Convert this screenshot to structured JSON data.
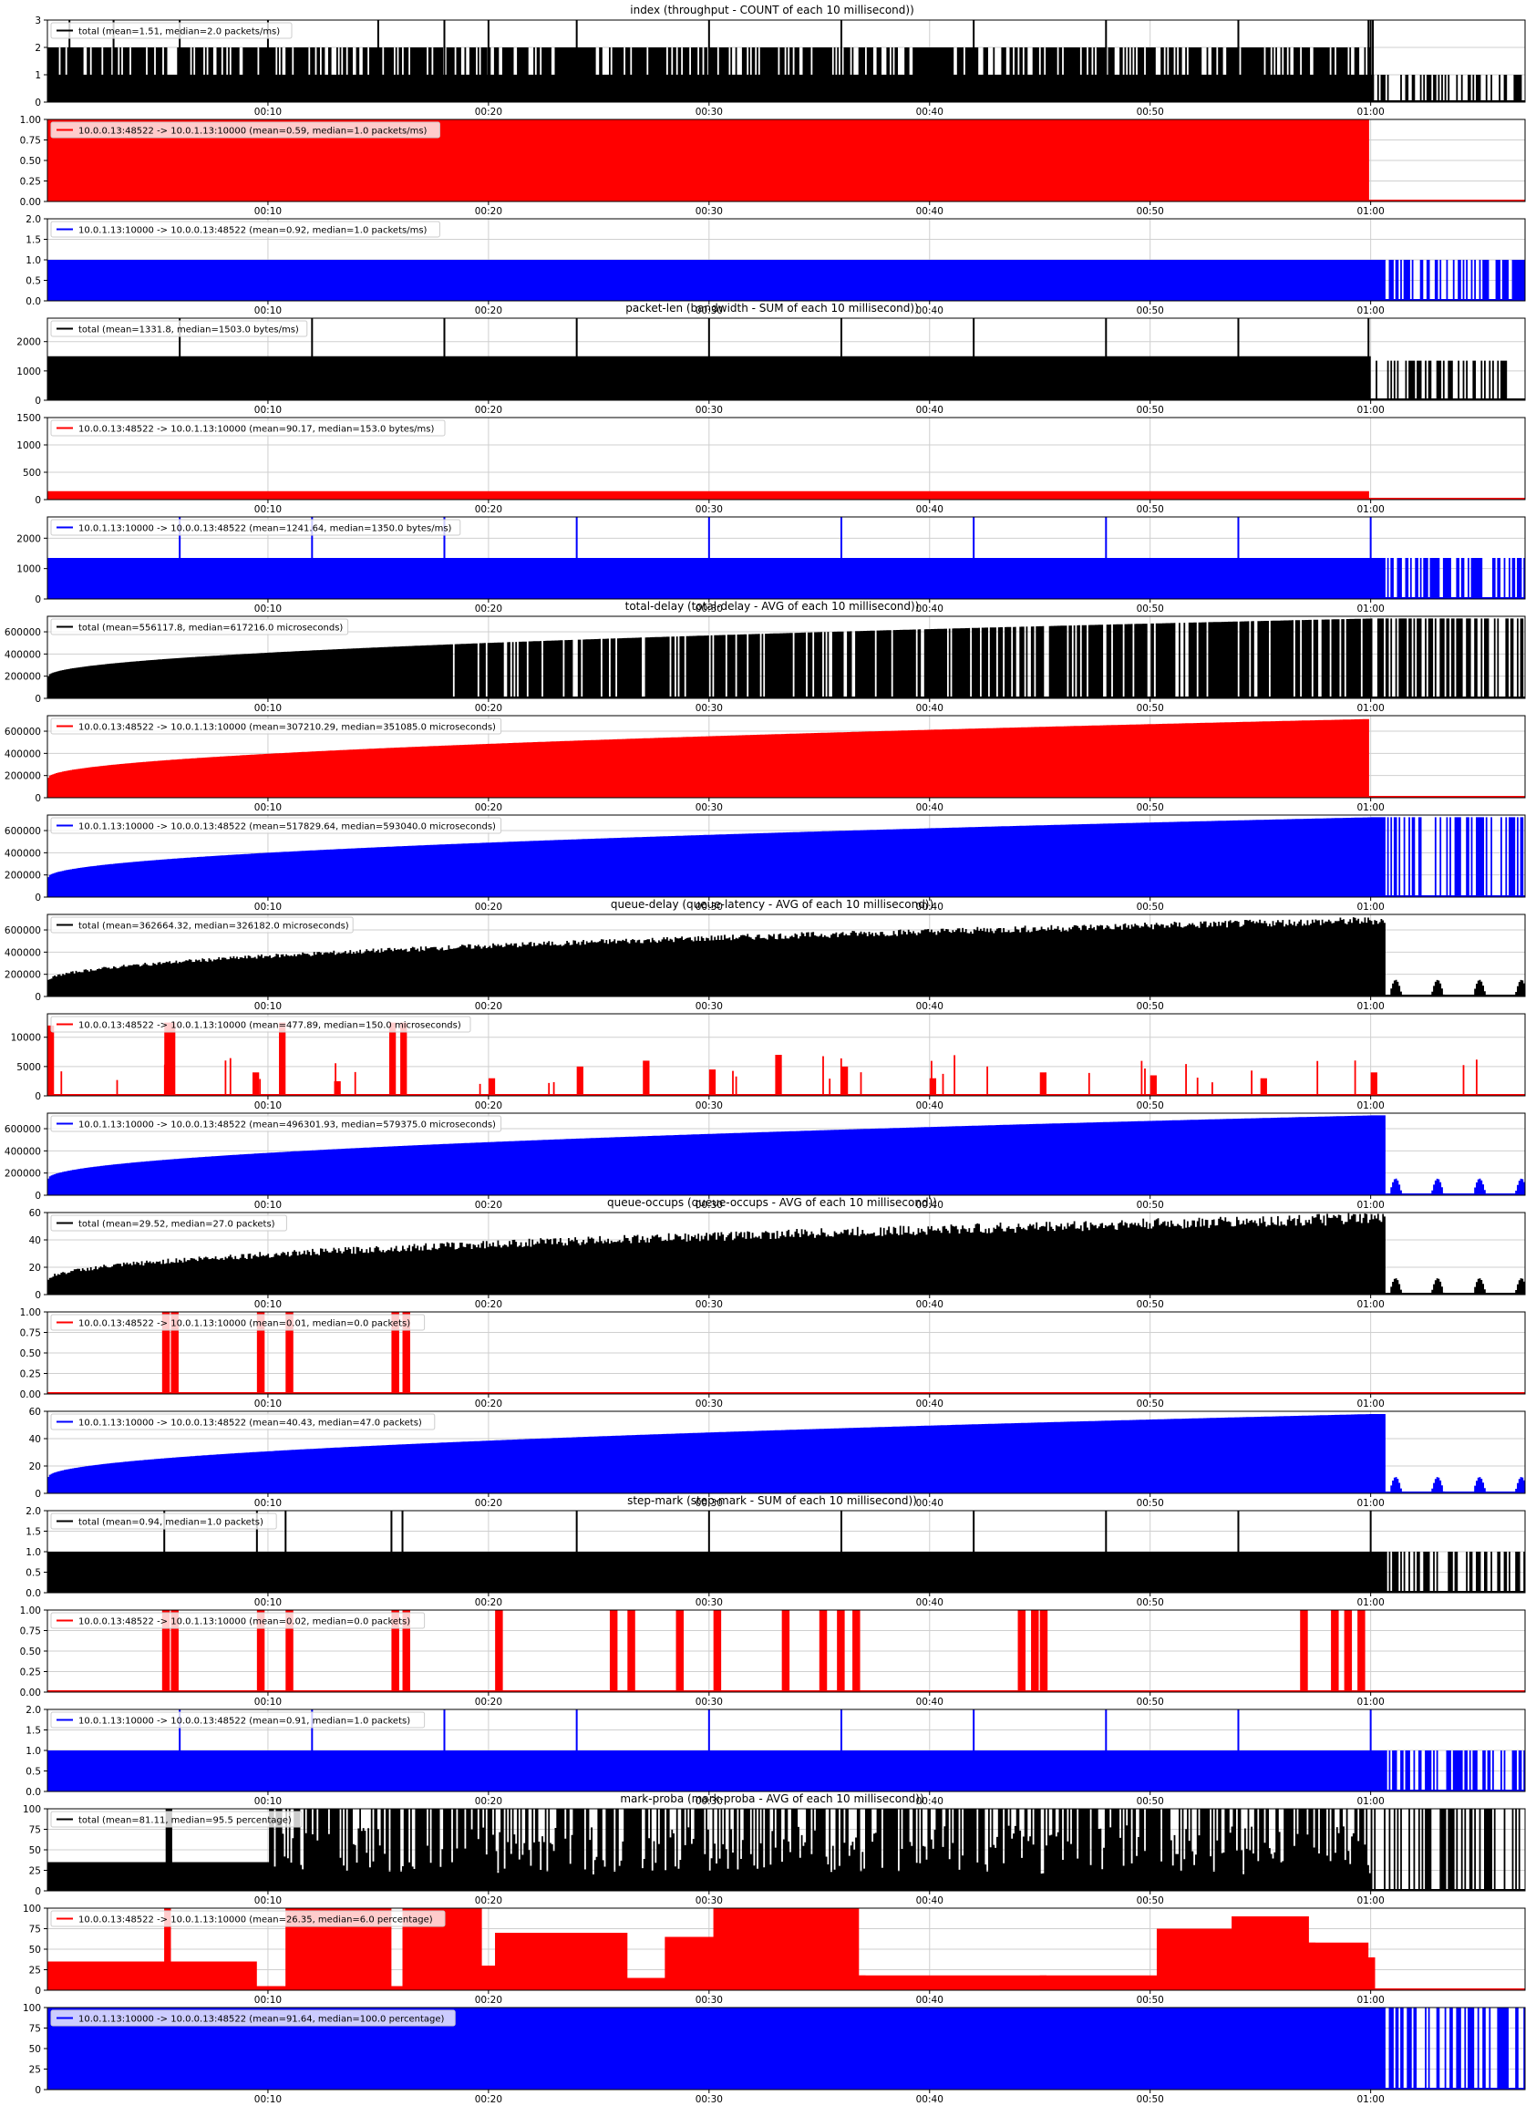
{
  "figure": {
    "group_titles": [
      "index (throughput - COUNT of each 10 millisecond))",
      "packet-len (bandwidth - SUM of each 10 millisecond))",
      "total-delay (total-delay - AVG of each 10 millisecond))",
      "queue-delay (queue-latency - AVG of each 10 millisecond))",
      "queue-occups (queue-occups - AVG of each 10 millisecond))",
      "step-mark (step-mark - SUM of each 10 millisecond))",
      "mark-proba (mark-proba - AVG of each 10 millisecond))"
    ],
    "x_tick_labels": [
      "00:10",
      "00:20",
      "00:30",
      "00:40",
      "00:50",
      "01:00"
    ],
    "colors": {
      "total": "#000000",
      "forward": "#ff0000",
      "reverse": "#0000ff"
    }
  },
  "chart_data": [
    {
      "type": "area",
      "group_title": "index (throughput - COUNT of each 10 millisecond))",
      "series": [
        {
          "name": "total (mean=1.51, median=2.0 packets/ms)",
          "color": "#000000",
          "x": [
            0,
            1,
            3,
            6,
            10,
            15,
            18,
            20,
            24,
            30,
            36,
            42,
            48,
            54,
            59.9,
            60,
            60.1,
            61,
            62,
            63,
            64,
            65,
            66,
            67
          ]
        }
      ],
      "ylim": [
        0,
        3
      ],
      "yticks": [
        "0",
        "1",
        "2",
        "3"
      ],
      "xlim": [
        0,
        67
      ]
    },
    {
      "type": "area",
      "series": [
        {
          "name": "10.0.0.13:48522 -> 10.0.1.13:10000 (mean=0.59, median=1.0 packets/ms)",
          "color": "#ff0000",
          "x": [
            0,
            59.9,
            60,
            67
          ],
          "y": [
            1,
            1,
            0,
            0
          ]
        }
      ],
      "ylim": [
        0,
        1
      ],
      "yticks": [
        "0.00",
        "0.25",
        "0.50",
        "0.75",
        "1.00"
      ],
      "xlim": [
        0,
        67
      ]
    },
    {
      "type": "area",
      "series": [
        {
          "name": "10.0.1.13:10000 -> 10.0.0.13:48522 (mean=0.92, median=1.0 packets/ms)",
          "color": "#0000ff",
          "x": [
            0,
            60.6,
            61,
            62,
            63,
            64,
            65,
            66,
            67
          ]
        }
      ],
      "ylim": [
        0,
        2
      ],
      "yticks": [
        "0.0",
        "0.5",
        "1.0",
        "1.5",
        "2.0"
      ],
      "xlim": [
        0,
        67
      ]
    },
    {
      "type": "area",
      "group_title": "packet-len (bandwidth - SUM of each 10 millisecond))",
      "series": [
        {
          "name": "total (mean=1331.8, median=1503.0 bytes/ms)",
          "color": "#000000",
          "x": [
            0,
            6,
            12,
            18,
            24,
            30,
            36,
            42,
            48,
            54,
            59.9,
            60.6,
            61,
            62,
            63,
            64,
            65,
            66,
            67
          ]
        }
      ],
      "ylim": [
        0,
        2800
      ],
      "yticks": [
        "0",
        "1000",
        "2000"
      ],
      "xlim": [
        0,
        67
      ]
    },
    {
      "type": "area",
      "series": [
        {
          "name": "10.0.0.13:48522 -> 10.0.1.13:10000 (mean=90.17, median=153.0 bytes/ms)",
          "color": "#ff0000",
          "x": [
            0,
            59.9,
            60,
            67
          ],
          "y": [
            153,
            153,
            0,
            0
          ]
        }
      ],
      "ylim": [
        0,
        1500
      ],
      "yticks": [
        "0",
        "500",
        "1000",
        "1500"
      ],
      "xlim": [
        0,
        67
      ]
    },
    {
      "type": "area",
      "series": [
        {
          "name": "10.0.1.13:10000 -> 10.0.0.13:48522 (mean=1241.64, median=1350.0 bytes/ms)",
          "color": "#0000ff",
          "x": [
            0,
            6,
            12,
            18,
            24,
            30,
            36,
            42,
            48,
            54,
            60,
            60.6,
            61,
            62,
            63,
            64,
            65,
            66,
            67
          ]
        }
      ],
      "ylim": [
        0,
        2700
      ],
      "yticks": [
        "0",
        "1000",
        "2000"
      ],
      "xlim": [
        0,
        67
      ]
    },
    {
      "type": "area",
      "group_title": "total-delay (total-delay - AVG of each 10 millisecond))",
      "series": [
        {
          "name": "total (mean=556117.8, median=617216.0 microseconds)",
          "color": "#000000",
          "x": [
            0,
            2,
            5,
            10,
            15,
            18,
            20,
            25,
            30,
            35,
            40,
            45,
            50,
            55,
            60,
            61,
            62,
            63,
            64,
            65,
            66,
            67
          ]
        }
      ],
      "ylim": [
        0,
        740000
      ],
      "yticks": [
        "0",
        "200000",
        "400000",
        "600000"
      ],
      "xlim": [
        0,
        67
      ]
    },
    {
      "type": "area",
      "series": [
        {
          "name": "10.0.0.13:48522 -> 10.0.1.13:10000 (mean=307210.29, median=351085.0 microseconds)",
          "color": "#ff0000",
          "x": [
            0,
            5,
            10,
            15,
            20,
            25,
            30,
            35,
            40,
            45,
            50,
            55,
            59.9,
            60,
            67
          ]
        }
      ],
      "ylim": [
        0,
        740000
      ],
      "yticks": [
        "0",
        "200000",
        "400000",
        "600000"
      ],
      "xlim": [
        0,
        67
      ]
    },
    {
      "type": "area",
      "series": [
        {
          "name": "10.0.1.13:10000 -> 10.0.0.13:48522 (mean=517829.64, median=593040.0 microseconds)",
          "color": "#0000ff",
          "x": [
            0,
            5,
            10,
            15,
            20,
            25,
            30,
            35,
            40,
            45,
            50,
            55,
            60,
            60.6,
            61,
            62,
            63,
            64,
            65,
            66,
            67
          ]
        }
      ],
      "ylim": [
        0,
        740000
      ],
      "yticks": [
        "0",
        "200000",
        "400000",
        "600000"
      ],
      "xlim": [
        0,
        67
      ]
    },
    {
      "type": "area",
      "group_title": "queue-delay (queue-latency - AVG of each 10 millisecond))",
      "series": [
        {
          "name": "total (mean=362664.32, median=326182.0 microseconds)",
          "color": "#000000",
          "x": [
            0,
            2,
            5,
            10,
            15,
            20,
            25,
            30,
            35,
            40,
            45,
            50,
            55,
            60,
            60.6,
            61,
            61.5,
            62,
            63,
            63.5,
            64,
            65,
            65.5,
            66,
            67
          ]
        }
      ],
      "ylim": [
        0,
        740000
      ],
      "yticks": [
        "0",
        "200000",
        "400000",
        "600000"
      ],
      "xlim": [
        0,
        67
      ]
    },
    {
      "type": "area",
      "series": [
        {
          "name": "10.0.0.13:48522 -> 10.0.1.13:10000 (mean=477.89, median=150.0 microseconds)",
          "color": "#ff0000",
          "x": [
            0,
            5.3,
            5.5,
            9.3,
            10.5,
            13,
            15.5,
            16,
            20,
            24,
            27,
            30,
            33,
            36,
            40,
            45,
            50,
            55,
            60,
            67
          ],
          "y": [
            12000,
            12500,
            12500,
            4000,
            12500,
            2500,
            12500,
            12500,
            3000,
            5000,
            6000,
            4500,
            7000,
            5000,
            3000,
            4000,
            3500,
            3000,
            4000,
            0
          ]
        }
      ],
      "ylim": [
        0,
        14000
      ],
      "yticks": [
        "0",
        "5000",
        "10000"
      ],
      "xlim": [
        0,
        67
      ]
    },
    {
      "type": "area",
      "series": [
        {
          "name": "10.0.1.13:10000 -> 10.0.0.13:48522 (mean=496301.93, median=579375.0 microseconds)",
          "color": "#0000ff",
          "x": [
            0,
            5,
            10,
            15,
            20,
            25,
            30,
            35,
            40,
            45,
            50,
            55,
            60,
            60.6,
            61,
            61.5,
            62,
            63,
            63.5,
            64,
            65,
            65.5,
            66,
            67
          ]
        }
      ],
      "ylim": [
        0,
        740000
      ],
      "yticks": [
        "0",
        "200000",
        "400000",
        "600000"
      ],
      "xlim": [
        0,
        67
      ]
    },
    {
      "type": "area",
      "group_title": "queue-occups (queue-occups - AVG of each 10 millisecond))",
      "series": [
        {
          "name": "total (mean=29.52, median=27.0 packets)",
          "color": "#000000",
          "x": [
            0,
            2,
            5,
            10,
            15,
            20,
            25,
            30,
            35,
            40,
            45,
            50,
            55,
            60,
            60.6,
            61,
            61.5,
            62,
            63,
            63.5,
            64,
            65,
            65.5,
            66,
            67
          ]
        }
      ],
      "ylim": [
        0,
        60
      ],
      "yticks": [
        "0",
        "20",
        "40",
        "60"
      ],
      "xlim": [
        0,
        67
      ]
    },
    {
      "type": "area",
      "series": [
        {
          "name": "10.0.0.13:48522 -> 10.0.1.13:10000 (mean=0.01, median=0.0 packets)",
          "color": "#ff0000",
          "x": [
            5.2,
            5.6,
            9.5,
            10.8,
            15.6,
            16.1
          ],
          "y": [
            1,
            1,
            1,
            1,
            1,
            1
          ]
        }
      ],
      "ylim": [
        0,
        1
      ],
      "yticks": [
        "0.00",
        "0.25",
        "0.50",
        "0.75",
        "1.00"
      ],
      "xlim": [
        0,
        67
      ]
    },
    {
      "type": "area",
      "series": [
        {
          "name": "10.0.1.13:10000 -> 10.0.0.13:48522 (mean=40.43, median=47.0 packets)",
          "color": "#0000ff",
          "x": [
            0,
            2,
            5,
            10,
            15,
            20,
            25,
            30,
            35,
            40,
            45,
            50,
            55,
            60,
            60.6,
            61,
            61.5,
            62,
            63,
            63.5,
            64,
            65,
            65.5,
            66,
            67
          ]
        }
      ],
      "ylim": [
        0,
        60
      ],
      "yticks": [
        "0",
        "20",
        "40",
        "60"
      ],
      "xlim": [
        0,
        67
      ]
    },
    {
      "type": "area",
      "group_title": "step-mark (step-mark - SUM of each 10 millisecond))",
      "series": [
        {
          "name": "total (mean=0.94, median=1.0 packets)",
          "color": "#000000",
          "x": [
            0,
            5.3,
            9.5,
            10.8,
            15.6,
            16.1,
            24,
            30,
            36,
            42,
            48,
            54,
            60,
            60.6,
            61,
            62,
            63,
            64,
            65,
            66,
            67
          ]
        }
      ],
      "ylim": [
        0,
        2
      ],
      "yticks": [
        "0.0",
        "0.5",
        "1.0",
        "1.5",
        "2.0"
      ],
      "xlim": [
        0,
        67
      ]
    },
    {
      "type": "area",
      "series": [
        {
          "name": "10.0.0.13:48522 -> 10.0.1.13:10000 (mean=0.02, median=0.0 packets)",
          "color": "#ff0000",
          "x": [
            5.2,
            5.6,
            9.5,
            10.8,
            15.6,
            16.1,
            20.3,
            25.5,
            26.3,
            28.5,
            30.2,
            33.3,
            35,
            35.8,
            36.5,
            44,
            44.6,
            45,
            56.8,
            58.2,
            58.8,
            59.4
          ],
          "y": [
            1,
            1,
            1,
            1,
            1,
            1,
            1,
            1,
            1,
            1,
            1,
            1,
            1,
            1,
            1,
            1,
            1,
            1,
            1,
            1,
            1,
            1
          ]
        }
      ],
      "ylim": [
        0,
        1
      ],
      "yticks": [
        "0.00",
        "0.25",
        "0.50",
        "0.75",
        "1.00"
      ],
      "xlim": [
        0,
        67
      ]
    },
    {
      "type": "area",
      "series": [
        {
          "name": "10.0.1.13:10000 -> 10.0.0.13:48522 (mean=0.91, median=1.0 packets)",
          "color": "#0000ff",
          "x": [
            0,
            6,
            12,
            18,
            24,
            30,
            36,
            42,
            48,
            54,
            60,
            60.6,
            61,
            62,
            63,
            64,
            65,
            66,
            67
          ]
        }
      ],
      "ylim": [
        0,
        2
      ],
      "yticks": [
        "0.0",
        "0.5",
        "1.0",
        "1.5",
        "2.0"
      ],
      "xlim": [
        0,
        67
      ]
    },
    {
      "type": "area",
      "group_title": "mark-proba (mark-proba - AVG of each 10 millisecond))",
      "series": [
        {
          "name": "total (mean=81.11, median=95.5 percentage)",
          "color": "#000000",
          "x": [
            0,
            5.3,
            9.5,
            10.8,
            15.6,
            16.1,
            20,
            25,
            30,
            35,
            40,
            45,
            50,
            55,
            60,
            60.6,
            61,
            62,
            63,
            64,
            65,
            66,
            67
          ]
        }
      ],
      "ylim": [
        0,
        100
      ],
      "yticks": [
        "0",
        "25",
        "50",
        "75",
        "100"
      ],
      "xlim": [
        0,
        67
      ]
    },
    {
      "type": "area",
      "series": [
        {
          "name": "10.0.0.13:48522 -> 10.0.1.13:10000 (mean=26.35, median=6.0 percentage)",
          "color": "#ff0000",
          "x": [
            0,
            5.3,
            5.6,
            9.5,
            10.8,
            15.6,
            16.1,
            19.7,
            20.3,
            26.3,
            28,
            30.2,
            36.8,
            45,
            50.3,
            53.7,
            57.2,
            59.9,
            60,
            67
          ],
          "y": [
            35,
            100,
            35,
            5,
            100,
            5,
            100,
            30,
            70,
            15,
            65,
            100,
            18,
            18,
            75,
            90,
            58,
            40,
            0,
            0
          ]
        }
      ],
      "ylim": [
        0,
        100
      ],
      "yticks": [
        "0",
        "25",
        "50",
        "75",
        "100"
      ],
      "xlim": [
        0,
        67
      ]
    },
    {
      "type": "area",
      "series": [
        {
          "name": "10.0.1.13:10000 -> 10.0.0.13:48522 (mean=91.64, median=100.0 percentage)",
          "color": "#0000ff",
          "x": [
            0,
            60.6,
            61,
            62,
            63,
            64,
            65,
            66,
            67
          ]
        }
      ],
      "ylim": [
        0,
        100
      ],
      "yticks": [
        "0",
        "25",
        "50",
        "75",
        "100"
      ],
      "xlim": [
        0,
        67
      ]
    }
  ]
}
